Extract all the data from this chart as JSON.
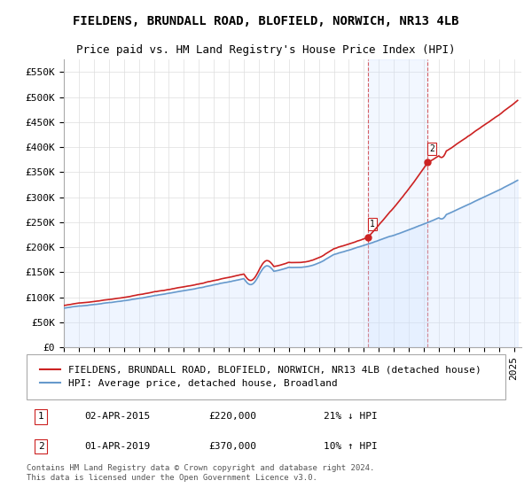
{
  "title": "FIELDENS, BRUNDALL ROAD, BLOFIELD, NORWICH, NR13 4LB",
  "subtitle": "Price paid vs. HM Land Registry's House Price Index (HPI)",
  "ylabel_ticks": [
    "£0",
    "£50K",
    "£100K",
    "£150K",
    "£200K",
    "£250K",
    "£300K",
    "£350K",
    "£400K",
    "£450K",
    "£500K",
    "£550K"
  ],
  "ytick_values": [
    0,
    50000,
    100000,
    150000,
    200000,
    250000,
    300000,
    350000,
    400000,
    450000,
    500000,
    550000
  ],
  "ylim": [
    0,
    575000
  ],
  "xlim_start": 1995.0,
  "xlim_end": 2025.5,
  "background_color": "#ffffff",
  "plot_bg_color": "#ffffff",
  "grid_color": "#dddddd",
  "hpi_color": "#6699cc",
  "hpi_fill_color": "#cce0ff",
  "price_color": "#cc2222",
  "sale1_x": 2015.25,
  "sale1_y": 220000,
  "sale1_label": "1",
  "sale2_x": 2019.25,
  "sale2_y": 370000,
  "sale2_label": "2",
  "vline_color": "#cc2222",
  "shade_start": 2015.25,
  "shade_end": 2019.25,
  "legend_price_label": "FIELDENS, BRUNDALL ROAD, BLOFIELD, NORWICH, NR13 4LB (detached house)",
  "legend_hpi_label": "HPI: Average price, detached house, Broadland",
  "annotation1_date": "02-APR-2015",
  "annotation1_price": "£220,000",
  "annotation1_hpi": "21% ↓ HPI",
  "annotation2_date": "01-APR-2019",
  "annotation2_price": "£370,000",
  "annotation2_hpi": "10% ↑ HPI",
  "footnote": "Contains HM Land Registry data © Crown copyright and database right 2024.\nThis data is licensed under the Open Government Licence v3.0.",
  "title_fontsize": 10,
  "subtitle_fontsize": 9,
  "tick_fontsize": 8,
  "legend_fontsize": 8,
  "annot_fontsize": 8,
  "footnote_fontsize": 6.5
}
